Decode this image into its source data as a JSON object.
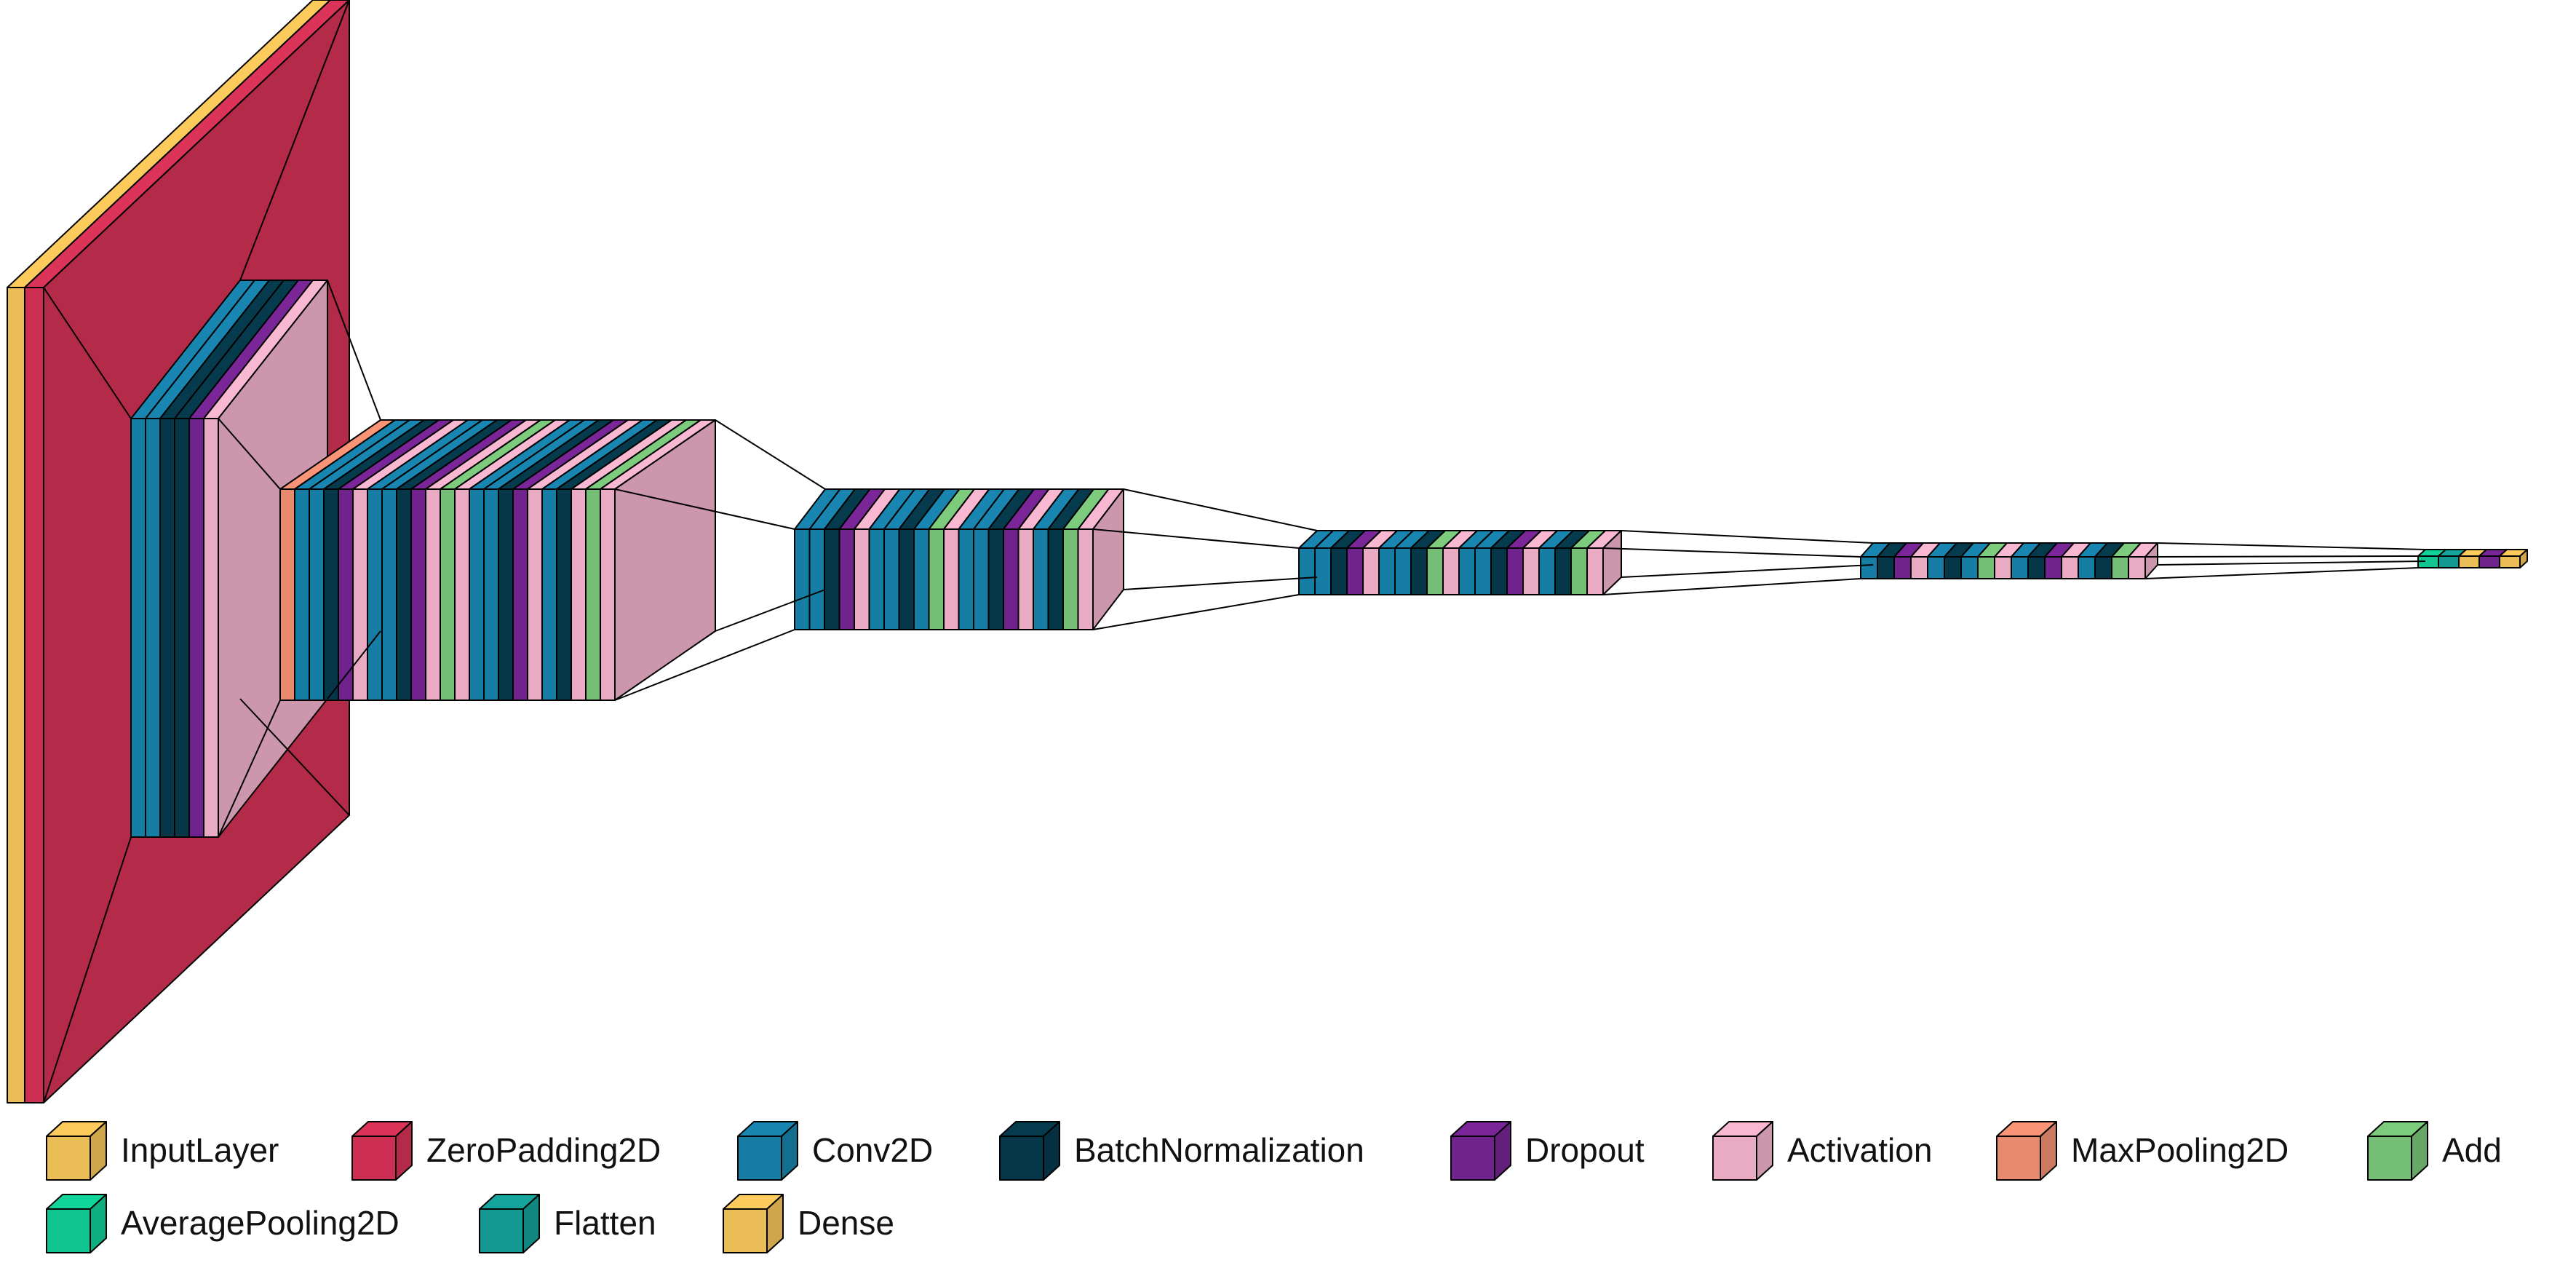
{
  "layer_types": {
    "input": {
      "label": "InputLayer",
      "color": "#FDCB5C"
    },
    "zpad": {
      "label": "ZeroPadding2D",
      "color": "#DC3359"
    },
    "conv": {
      "label": "Conv2D",
      "color": "#1886B0"
    },
    "bn": {
      "label": "BatchNormalization",
      "color": "#063B4E"
    },
    "drop": {
      "label": "Dropout",
      "color": "#7A2698"
    },
    "act": {
      "label": "Activation",
      "color": "#F9B8D2"
    },
    "maxpool": {
      "label": "MaxPooling2D",
      "color": "#F99476"
    },
    "add": {
      "label": "Add",
      "color": "#7DCC7E"
    },
    "avgpool": {
      "label": "AveragePooling2D",
      "color": "#11D49B"
    },
    "flatten": {
      "label": "Flatten",
      "color": "#14A59C"
    },
    "dense": {
      "label": "Dense",
      "color": "#FDCB5C"
    }
  },
  "legend_order": [
    "input",
    "zpad",
    "conv",
    "bn",
    "drop",
    "act",
    "maxpool",
    "add",
    "avgpool",
    "flatten",
    "dense"
  ],
  "stages": [
    [
      "input",
      "zpad"
    ],
    [
      "conv",
      "conv",
      "bn",
      "bn",
      "drop",
      "act"
    ],
    [
      "maxpool",
      "conv",
      "conv",
      "bn",
      "drop",
      "act",
      "conv",
      "conv",
      "bn",
      "drop",
      "act",
      "add",
      "act",
      "conv",
      "conv",
      "bn",
      "drop",
      "act",
      "conv",
      "bn",
      "act",
      "add",
      "act"
    ],
    [
      "conv",
      "conv",
      "bn",
      "drop",
      "act",
      "conv",
      "conv",
      "bn",
      "conv",
      "add",
      "act",
      "conv",
      "conv",
      "bn",
      "drop",
      "act",
      "conv",
      "bn",
      "add",
      "act"
    ],
    [
      "conv",
      "conv",
      "bn",
      "drop",
      "act",
      "conv",
      "conv",
      "bn",
      "add",
      "act",
      "conv",
      "conv",
      "bn",
      "drop",
      "act",
      "conv",
      "bn",
      "add",
      "act"
    ],
    [
      "conv",
      "bn",
      "drop",
      "act",
      "conv",
      "bn",
      "conv",
      "add",
      "act",
      "conv",
      "bn",
      "drop",
      "act",
      "conv",
      "bn",
      "add",
      "act"
    ],
    [
      "avgpool",
      "flatten",
      "dense",
      "drop",
      "dense"
    ]
  ]
}
